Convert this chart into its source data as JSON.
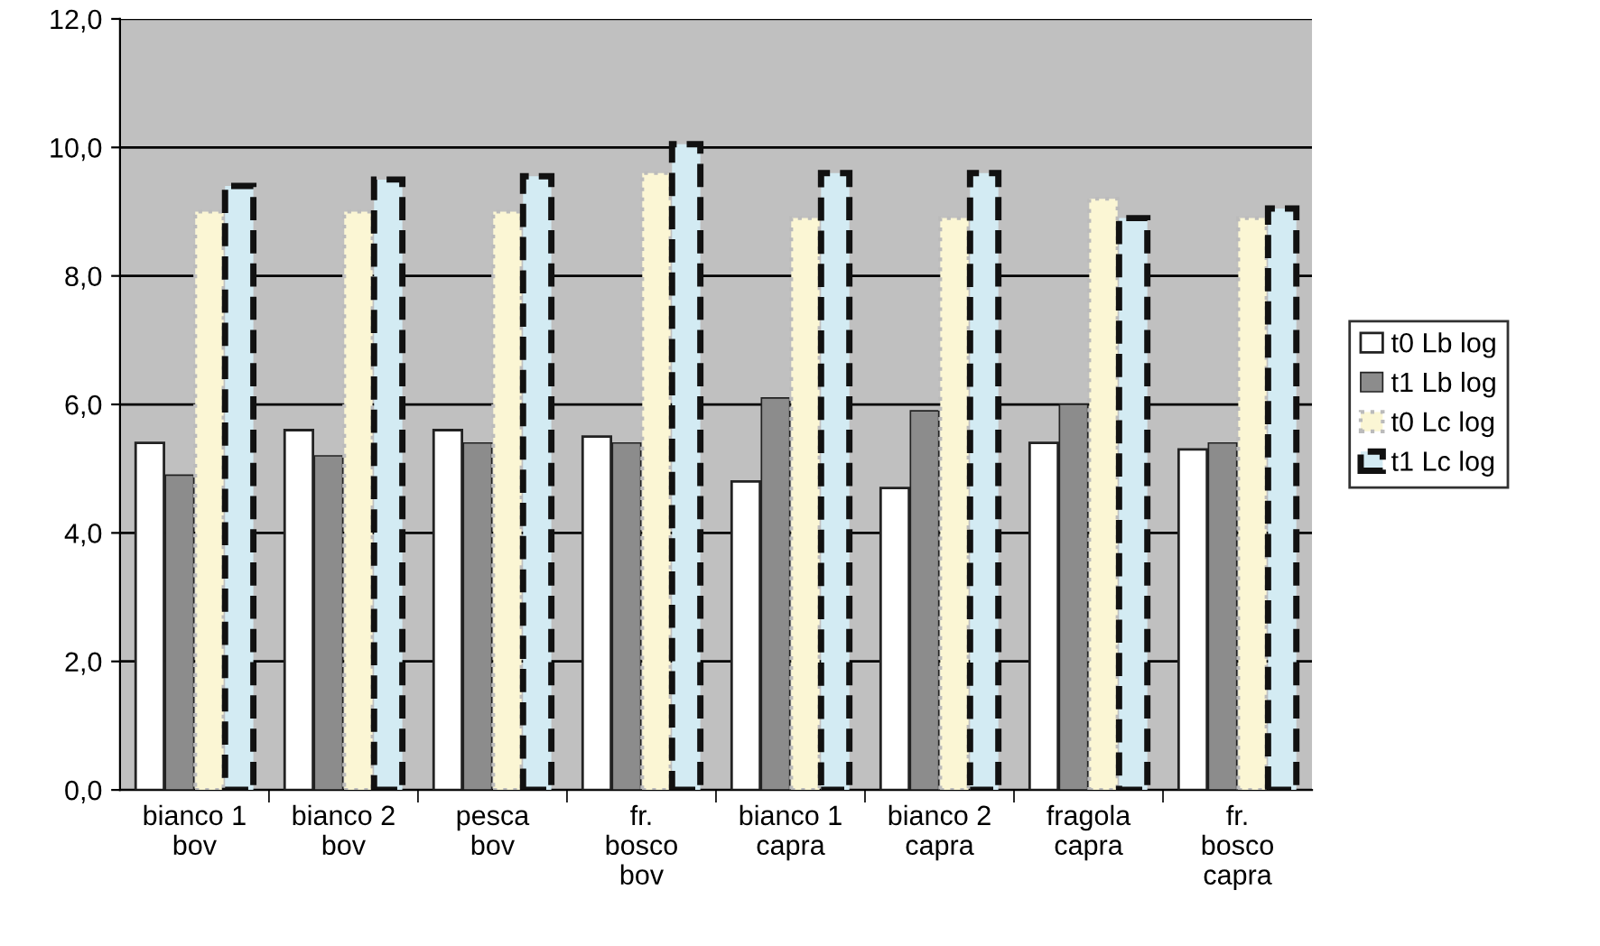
{
  "chart_data": {
    "type": "bar",
    "categories": [
      "bianco 1\nbov",
      "bianco 2\nbov",
      "pesca\nbov",
      "fr.\nbosco\nbov",
      "bianco 1\ncapra",
      "bianco 2\ncapra",
      "fragola\ncapra",
      "fr.\nbosco\ncapra"
    ],
    "series": [
      {
        "name": "t0 Lb log",
        "color": "#ffffff",
        "values": [
          5.4,
          5.6,
          5.6,
          5.5,
          4.8,
          4.7,
          5.4,
          5.3
        ]
      },
      {
        "name": "t1 Lb log",
        "color": "#8c8c8c",
        "values": [
          4.9,
          5.2,
          5.4,
          5.4,
          6.1,
          5.9,
          6.0,
          5.4
        ]
      },
      {
        "name": "t0 Lc log",
        "color": "#fbf6d4",
        "values": [
          9.0,
          9.0,
          9.0,
          9.6,
          8.9,
          8.9,
          9.2,
          8.9
        ]
      },
      {
        "name": "t1 Lc log",
        "color": "#d3ebf3",
        "values": [
          9.4,
          9.5,
          9.55,
          10.05,
          9.6,
          9.6,
          8.9,
          9.05
        ]
      }
    ],
    "ylim": [
      0,
      12
    ],
    "yticks": [
      {
        "value": 0,
        "label": "0,0"
      },
      {
        "value": 2,
        "label": "2,0"
      },
      {
        "value": 4,
        "label": "4,0"
      },
      {
        "value": 6,
        "label": "6,0"
      },
      {
        "value": 8,
        "label": "8,0"
      },
      {
        "value": 10,
        "label": "10,0"
      },
      {
        "value": 12,
        "label": "12,0"
      }
    ],
    "grid": "y",
    "legend": "right"
  }
}
